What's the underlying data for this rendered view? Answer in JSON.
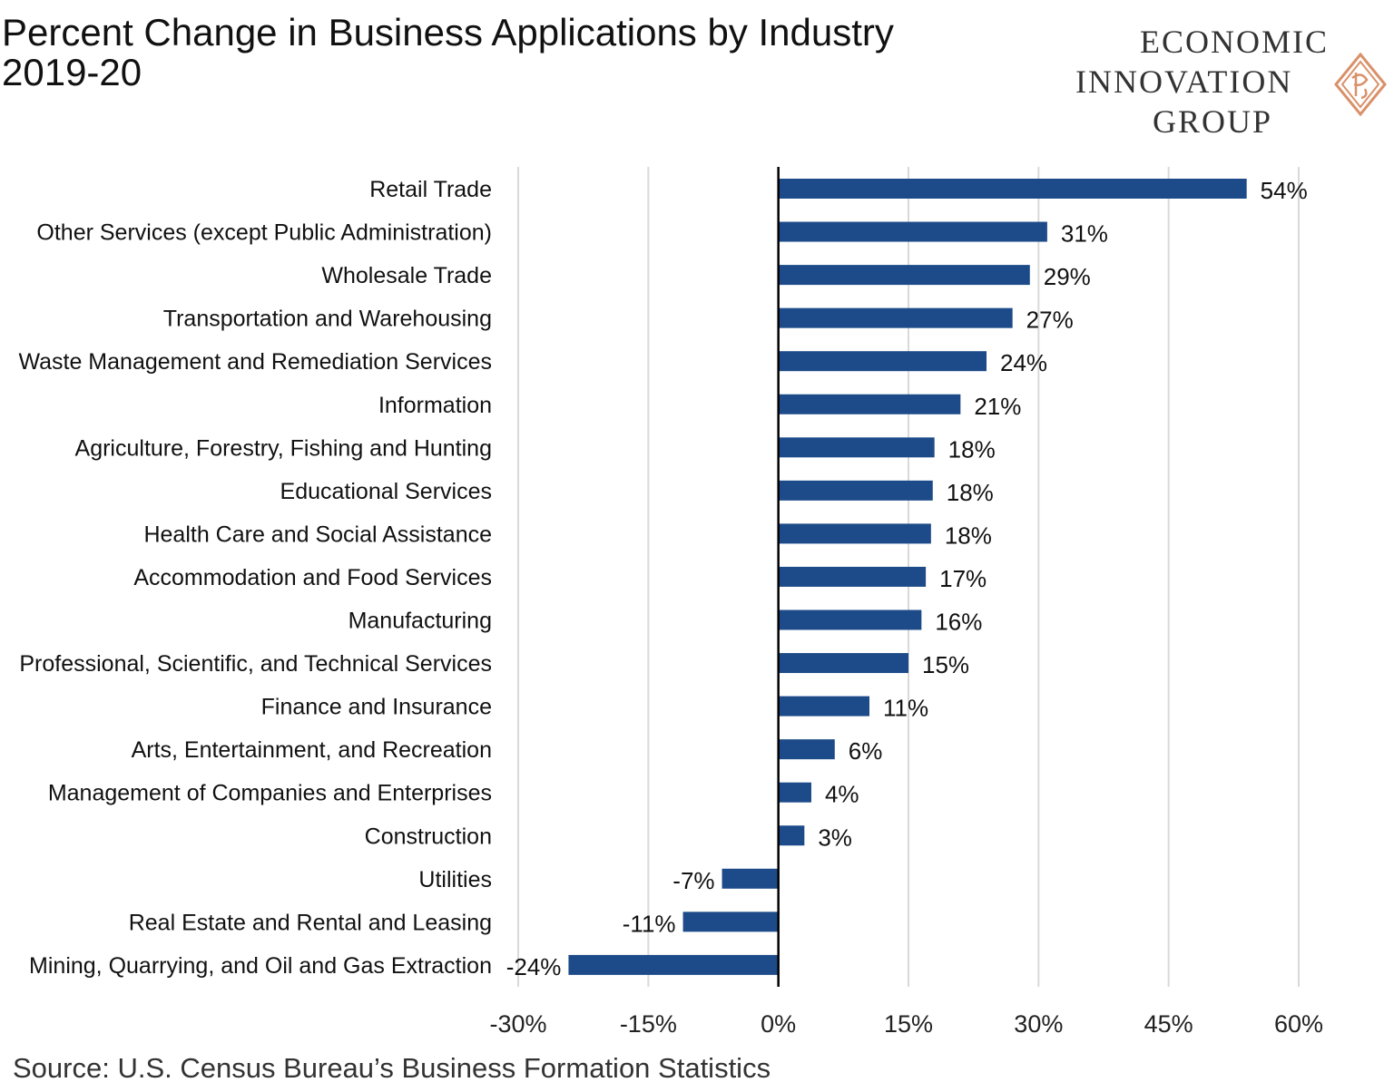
{
  "title": {
    "line1": "Percent Change in Business Applications by Industry",
    "line2": "2019-20"
  },
  "brand": {
    "line1": "ECONOMIC",
    "line2": "INNOVATION",
    "line3": "GROUP",
    "logo_icon": "diamond-monogram-icon",
    "logo_color": "#d9916a"
  },
  "source": "Source: U.S. Census Bureau’s Business Formation Statistics",
  "chart_data": {
    "type": "bar",
    "orientation": "horizontal",
    "categories": [
      "Retail Trade",
      "Other Services (except Public Administration)",
      "Wholesale Trade",
      "Transportation and Warehousing",
      "Waste Management and Remediation Services",
      "Information",
      "Agriculture, Forestry, Fishing and Hunting",
      "Educational Services",
      "Health Care and Social Assistance",
      "Accommodation and Food Services",
      "Manufacturing",
      "Professional, Scientific, and Technical Services",
      "Finance and Insurance",
      "Arts, Entertainment, and Recreation",
      "Management of Companies and Enterprises",
      "Construction",
      "Utilities",
      "Real Estate and Rental and Leasing",
      "Mining, Quarrying, and Oil and Gas Extraction"
    ],
    "values": [
      54,
      31,
      29,
      27,
      24,
      21,
      18,
      17.8,
      17.6,
      17,
      16.5,
      15,
      10.5,
      6.5,
      3.8,
      3,
      -6.5,
      -11,
      -24.2
    ],
    "labels": [
      "54%",
      "31%",
      "29%",
      "27%",
      "24%",
      "21%",
      "18%",
      "18%",
      "18%",
      "17%",
      "16%",
      "15%",
      "11%",
      "6%",
      "4%",
      "3%",
      "-7%",
      "-11%",
      "-24%"
    ],
    "xlim": [
      -30,
      60
    ],
    "xticks": [
      -30,
      -15,
      0,
      15,
      30,
      45,
      60
    ],
    "xtick_labels": [
      "-30%",
      "-15%",
      "0%",
      "15%",
      "30%",
      "45%",
      "60%"
    ],
    "bar_color": "#1d4b89",
    "grid": "vertical",
    "xlabel": "",
    "ylabel": ""
  }
}
